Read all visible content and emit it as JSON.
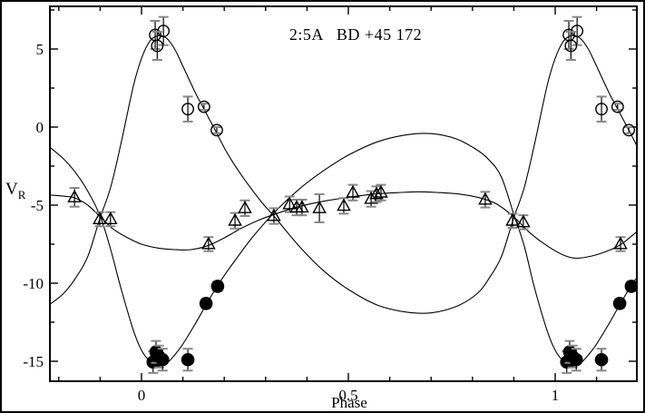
{
  "figure": {
    "title": "2:5A   BD +45 172",
    "ylabel": "V",
    "ylabel_sub": "R",
    "xlabel": "Phase"
  },
  "colors": {
    "foreground": "#000000",
    "background": "#ffffff",
    "error_cap": "#888888"
  },
  "chart_data": {
    "type": "scatter",
    "title": "2:5A BD +45 172",
    "xlabel": "Phase",
    "ylabel": "V_R",
    "xlim": [
      -0.2215,
      1.1974
    ],
    "ylim": [
      -16.28,
      7.73
    ],
    "grid": false,
    "legend": "none",
    "x_ticks": {
      "min": -0.2,
      "max": 1.1,
      "step": 0.1,
      "major_every": 5
    },
    "y_ticks": {
      "min": -15,
      "max": 7.5,
      "step": 2.5,
      "major_every": 2
    },
    "x_tick_labels": [
      {
        "value": 0,
        "label": "0"
      },
      {
        "value": 0.5,
        "label": "0.5"
      },
      {
        "value": 1,
        "label": "1"
      }
    ],
    "y_tick_labels": [
      {
        "value": 5,
        "label": "5"
      },
      {
        "value": 0,
        "label": "0"
      },
      {
        "value": -5,
        "label": "-5"
      },
      {
        "value": -10,
        "label": "-10"
      },
      {
        "value": -15,
        "label": "-15"
      }
    ],
    "series": [
      {
        "name": "open-circles-component",
        "marker": "open-circle",
        "points": [
          {
            "x": 0.033,
            "y": 5.9,
            "err": 0.9
          },
          {
            "x": 0.053,
            "y": 6.15,
            "err": 0.9
          },
          {
            "x": 0.038,
            "y": 5.2,
            "err": 0.9
          },
          {
            "x": 0.112,
            "y": 1.15,
            "err": 0.8
          },
          {
            "x": 0.151,
            "y": 1.3,
            "err": 0.2
          },
          {
            "x": 0.182,
            "y": -0.2,
            "err": 0.2
          },
          {
            "x": 1.033,
            "y": 5.9,
            "err": 0.9
          },
          {
            "x": 1.053,
            "y": 6.15,
            "err": 0.9
          },
          {
            "x": 1.038,
            "y": 5.2,
            "err": 0.9
          },
          {
            "x": 1.112,
            "y": 1.15,
            "err": 0.8
          },
          {
            "x": 1.151,
            "y": 1.3,
            "err": 0.2
          },
          {
            "x": 1.178,
            "y": -0.2,
            "err": 0.2
          }
        ]
      },
      {
        "name": "filled-circles-component",
        "marker": "filled-circle",
        "points": [
          {
            "x": 0.028,
            "y": -15.05,
            "err": 0.7
          },
          {
            "x": 0.035,
            "y": -14.4,
            "err": 0.7
          },
          {
            "x": 0.042,
            "y": -14.7,
            "err": 0.7
          },
          {
            "x": 0.051,
            "y": -14.9,
            "err": 0.7
          },
          {
            "x": 0.112,
            "y": -14.9,
            "err": 0.7
          },
          {
            "x": 0.156,
            "y": -11.3,
            "err": 0.3
          },
          {
            "x": 0.184,
            "y": -10.2,
            "err": 0.3
          },
          {
            "x": 1.028,
            "y": -15.05,
            "err": 0.7
          },
          {
            "x": 1.035,
            "y": -14.4,
            "err": 0.7
          },
          {
            "x": 1.042,
            "y": -14.7,
            "err": 0.7
          },
          {
            "x": 1.051,
            "y": -14.9,
            "err": 0.7
          },
          {
            "x": 1.112,
            "y": -14.9,
            "err": 0.7
          },
          {
            "x": 1.156,
            "y": -11.3,
            "err": 0.3
          },
          {
            "x": 1.184,
            "y": -10.2,
            "err": 0.3
          }
        ]
      },
      {
        "name": "open-triangles-component",
        "marker": "open-triangle",
        "points": [
          {
            "x": -0.162,
            "y": -4.5,
            "err": 0.6
          },
          {
            "x": -0.101,
            "y": -5.9,
            "err": 0.45
          },
          {
            "x": -0.075,
            "y": -5.9,
            "err": 0.45
          },
          {
            "x": 0.162,
            "y": -7.5,
            "err": 0.45
          },
          {
            "x": 0.226,
            "y": -6.0,
            "err": 0.5
          },
          {
            "x": 0.25,
            "y": -5.2,
            "err": 0.5
          },
          {
            "x": 0.32,
            "y": -5.7,
            "err": 0.5
          },
          {
            "x": 0.358,
            "y": -4.95,
            "err": 0.5
          },
          {
            "x": 0.375,
            "y": -5.15,
            "err": 0.5
          },
          {
            "x": 0.388,
            "y": -5.15,
            "err": 0.5
          },
          {
            "x": 0.43,
            "y": -5.2,
            "err": 0.9
          },
          {
            "x": 0.489,
            "y": -5.05,
            "err": 0.5
          },
          {
            "x": 0.511,
            "y": -4.2,
            "err": 0.5
          },
          {
            "x": 0.555,
            "y": -4.6,
            "err": 0.5
          },
          {
            "x": 0.568,
            "y": -4.3,
            "err": 0.5
          },
          {
            "x": 0.579,
            "y": -4.2,
            "err": 0.5
          },
          {
            "x": 0.831,
            "y": -4.65,
            "err": 0.5
          },
          {
            "x": 0.897,
            "y": -6.0,
            "err": 0.45
          },
          {
            "x": 0.923,
            "y": -6.1,
            "err": 0.45
          },
          {
            "x": 1.158,
            "y": -7.5,
            "err": 0.45
          }
        ]
      }
    ],
    "curves": [
      {
        "name": "model-open-circles",
        "points": [
          [
            -0.2215,
            -11.35
          ],
          [
            -0.19,
            -10.7
          ],
          [
            -0.16,
            -9.7
          ],
          [
            -0.13,
            -8.3
          ],
          [
            -0.1,
            -5.8
          ],
          [
            -0.075,
            -3.9
          ],
          [
            -0.05,
            -1.1
          ],
          [
            -0.02,
            2.6
          ],
          [
            0.0,
            4.4
          ],
          [
            0.02,
            5.5
          ],
          [
            0.04,
            5.85
          ],
          [
            0.06,
            5.7
          ],
          [
            0.08,
            5.0
          ],
          [
            0.1,
            3.9
          ],
          [
            0.13,
            2.2
          ],
          [
            0.15,
            1.2
          ],
          [
            0.18,
            -0.3
          ],
          [
            0.21,
            -1.8
          ],
          [
            0.25,
            -3.4
          ],
          [
            0.29,
            -4.8
          ],
          [
            0.32,
            -5.7
          ],
          [
            0.38,
            -7.6
          ],
          [
            0.44,
            -9.2
          ],
          [
            0.5,
            -10.4
          ],
          [
            0.57,
            -11.4
          ],
          [
            0.64,
            -11.85
          ],
          [
            0.7,
            -11.9
          ],
          [
            0.76,
            -11.5
          ],
          [
            0.81,
            -10.7
          ],
          [
            0.84,
            -9.7
          ],
          [
            0.87,
            -8.3
          ],
          [
            0.9,
            -5.8
          ],
          [
            0.925,
            -3.9
          ],
          [
            0.95,
            -1.1
          ],
          [
            0.98,
            2.6
          ],
          [
            1.0,
            4.4
          ],
          [
            1.02,
            5.5
          ],
          [
            1.04,
            5.85
          ],
          [
            1.06,
            5.7
          ],
          [
            1.08,
            5.0
          ],
          [
            1.1,
            3.9
          ],
          [
            1.13,
            2.2
          ],
          [
            1.15,
            1.2
          ],
          [
            1.18,
            -0.3
          ],
          [
            1.1974,
            -1.2
          ]
        ]
      },
      {
        "name": "model-filled-circles",
        "points": [
          [
            -0.2215,
            -1.3
          ],
          [
            -0.19,
            -2.0
          ],
          [
            -0.16,
            -2.9
          ],
          [
            -0.13,
            -4.1
          ],
          [
            -0.1,
            -5.7
          ],
          [
            -0.075,
            -7.8
          ],
          [
            -0.05,
            -10.3
          ],
          [
            -0.02,
            -13.0
          ],
          [
            0.0,
            -14.3
          ],
          [
            0.02,
            -15.0
          ],
          [
            0.04,
            -15.3
          ],
          [
            0.06,
            -15.15
          ],
          [
            0.08,
            -14.6
          ],
          [
            0.1,
            -13.9
          ],
          [
            0.13,
            -12.6
          ],
          [
            0.16,
            -11.2
          ],
          [
            0.19,
            -9.9
          ],
          [
            0.23,
            -8.4
          ],
          [
            0.27,
            -7.0
          ],
          [
            0.32,
            -5.5
          ],
          [
            0.38,
            -4.0
          ],
          [
            0.44,
            -2.8
          ],
          [
            0.5,
            -1.8
          ],
          [
            0.57,
            -0.95
          ],
          [
            0.64,
            -0.5
          ],
          [
            0.7,
            -0.42
          ],
          [
            0.76,
            -0.75
          ],
          [
            0.81,
            -1.45
          ],
          [
            0.84,
            -2.1
          ],
          [
            0.87,
            -3.2
          ],
          [
            0.9,
            -5.6
          ],
          [
            0.925,
            -7.6
          ],
          [
            0.95,
            -10.3
          ],
          [
            0.98,
            -13.0
          ],
          [
            1.0,
            -14.3
          ],
          [
            1.02,
            -15.0
          ],
          [
            1.04,
            -15.3
          ],
          [
            1.06,
            -15.15
          ],
          [
            1.08,
            -14.6
          ],
          [
            1.1,
            -13.9
          ],
          [
            1.13,
            -12.6
          ],
          [
            1.16,
            -11.2
          ],
          [
            1.19,
            -9.9
          ],
          [
            1.1974,
            -9.7
          ]
        ]
      },
      {
        "name": "model-open-triangles",
        "points": [
          [
            -0.2215,
            -4.35
          ],
          [
            -0.18,
            -4.45
          ],
          [
            -0.16,
            -4.55
          ],
          [
            -0.13,
            -5.0
          ],
          [
            -0.1,
            -5.75
          ],
          [
            -0.07,
            -6.5
          ],
          [
            -0.04,
            -7.0
          ],
          [
            0.0,
            -7.5
          ],
          [
            0.04,
            -7.75
          ],
          [
            0.08,
            -7.85
          ],
          [
            0.12,
            -7.85
          ],
          [
            0.16,
            -7.6
          ],
          [
            0.2,
            -7.1
          ],
          [
            0.24,
            -6.5
          ],
          [
            0.28,
            -6.0
          ],
          [
            0.32,
            -5.6
          ],
          [
            0.38,
            -5.1
          ],
          [
            0.44,
            -4.75
          ],
          [
            0.5,
            -4.5
          ],
          [
            0.56,
            -4.3
          ],
          [
            0.62,
            -4.2
          ],
          [
            0.67,
            -4.15
          ],
          [
            0.72,
            -4.2
          ],
          [
            0.77,
            -4.3
          ],
          [
            0.82,
            -4.55
          ],
          [
            0.86,
            -4.95
          ],
          [
            0.9,
            -5.75
          ],
          [
            0.94,
            -6.8
          ],
          [
            0.98,
            -7.6
          ],
          [
            1.02,
            -8.2
          ],
          [
            1.05,
            -8.4
          ],
          [
            1.09,
            -8.25
          ],
          [
            1.13,
            -7.9
          ],
          [
            1.16,
            -7.5
          ],
          [
            1.1974,
            -6.7
          ]
        ]
      }
    ]
  }
}
